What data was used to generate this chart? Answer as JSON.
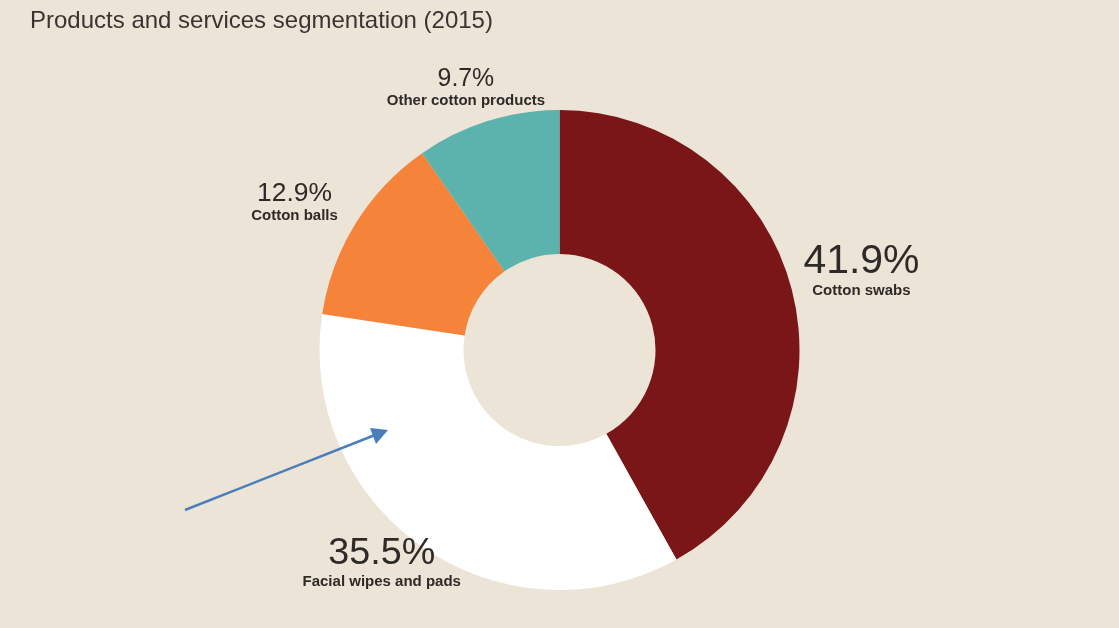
{
  "chart_data": {
    "type": "donut",
    "title": "Products and services segmentation (2015)",
    "categories": [
      "Cotton swabs",
      "Facial wipes and pads",
      "Cotton balls",
      "Other cotton products"
    ],
    "values": [
      41.9,
      35.5,
      12.9,
      9.7
    ],
    "colors": [
      "#7a1618",
      "#ffffff",
      "#f5843a",
      "#5cb3ad"
    ],
    "value_labels": [
      "41.9%",
      "35.5%",
      "12.9%",
      "9.7%"
    ],
    "legend": false
  }
}
